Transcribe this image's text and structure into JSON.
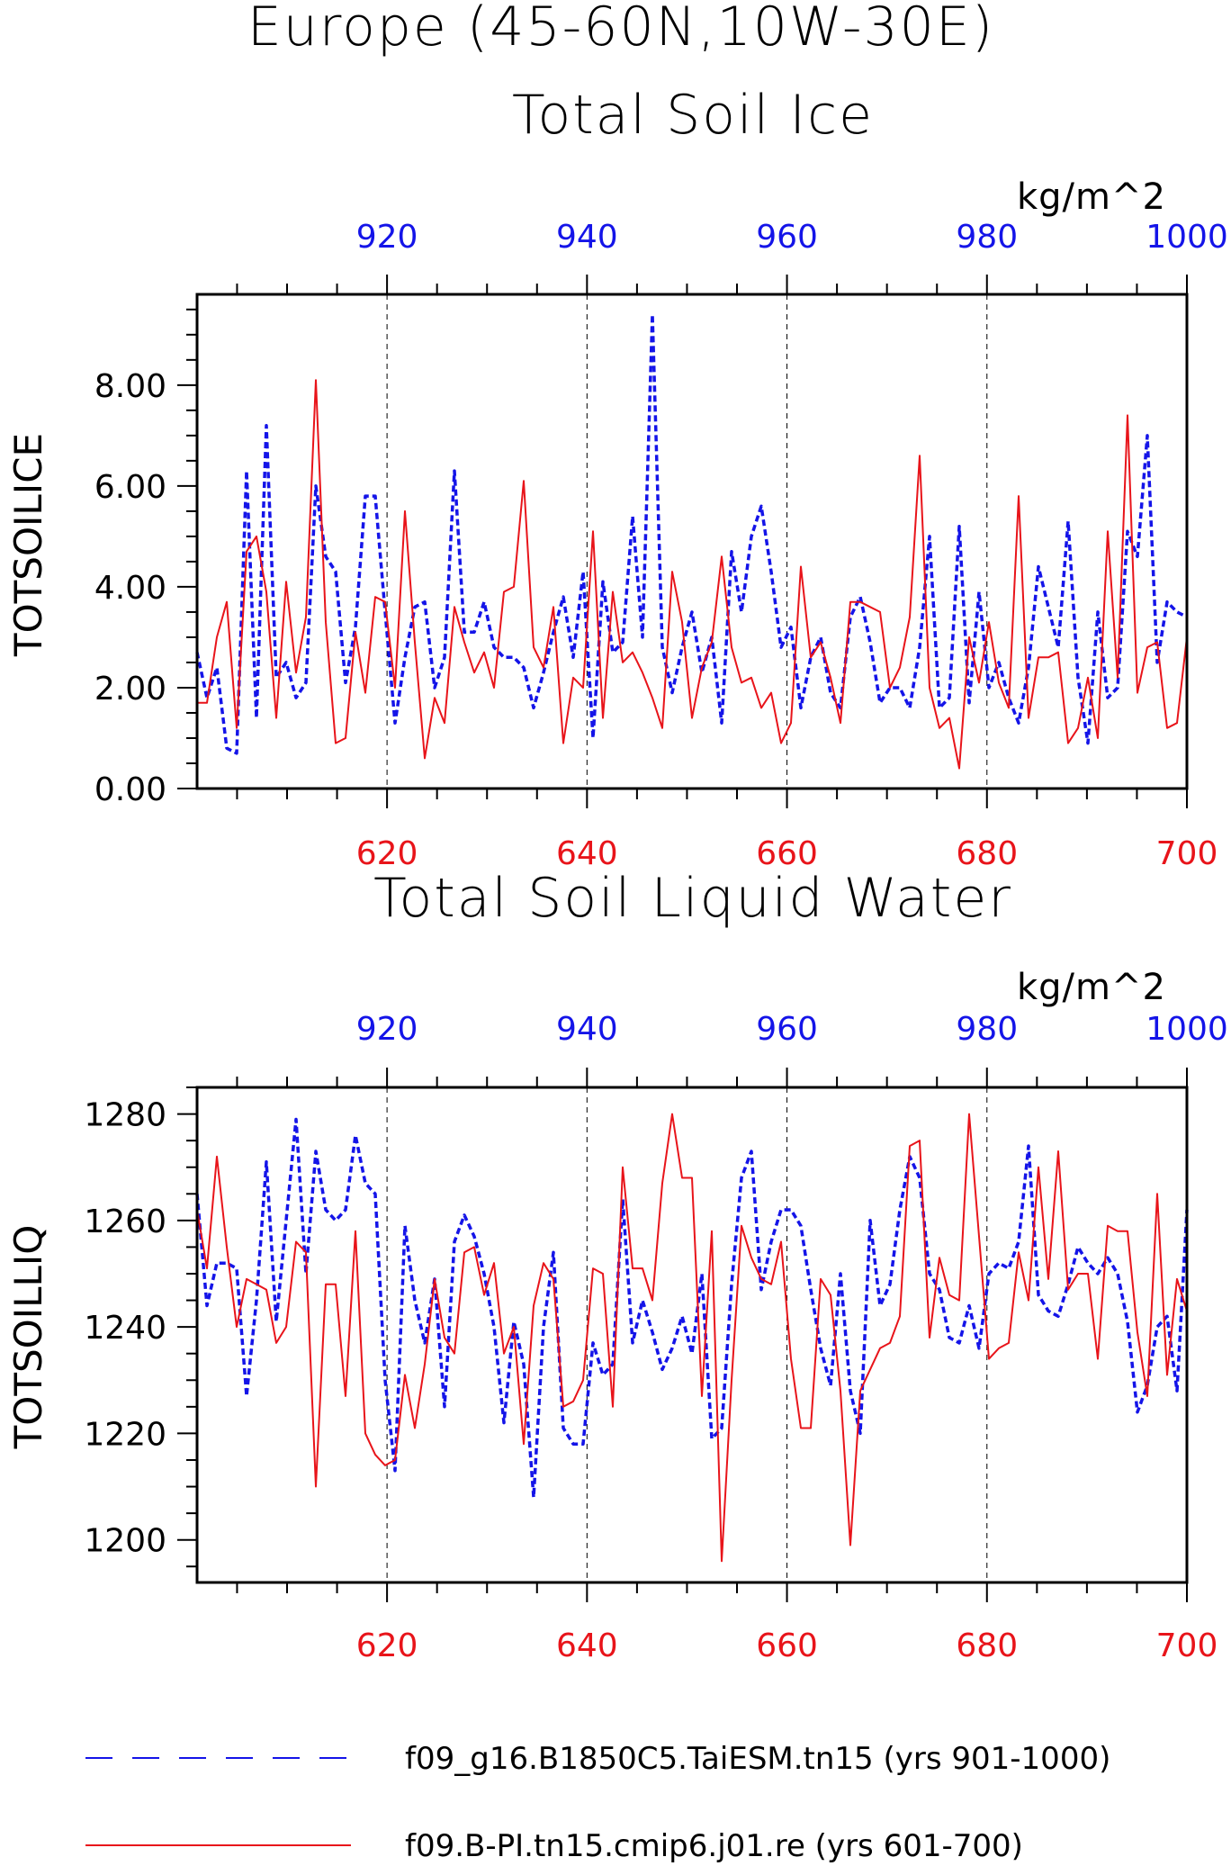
{
  "page_title": "Europe (45-60N,10W-30E)",
  "legend": [
    {
      "label": "f09_g16.B1850C5.TaiESM.tn15 (yrs 901-1000)",
      "color": "#1414e8",
      "dash": "dashed"
    },
    {
      "label": "f09.B-PI.tn15.cmip6.j01.re (yrs 601-700)",
      "color": "#e8141a",
      "dash": "solid"
    }
  ],
  "chart_data": [
    {
      "type": "line",
      "title": "Total Soil Ice",
      "units": "kg/m^2",
      "ylabel": "TOTSOILICE",
      "ylim": [
        0,
        9.8
      ],
      "yticks": [
        0,
        2,
        4,
        6,
        8
      ],
      "ytick_labels": [
        "0.00",
        "2.00",
        "4.00",
        "6.00",
        "8.00"
      ],
      "bottom_xlim": [
        601,
        700
      ],
      "bottom_xticks": [
        620,
        640,
        660,
        680,
        700
      ],
      "top_xlim": [
        901,
        1000
      ],
      "top_xticks": [
        920,
        940,
        960,
        980,
        1000
      ],
      "grid_x": true,
      "series": [
        {
          "axis": "top",
          "color": "#1414e8",
          "dash": "dashed",
          "values": [
            2.7,
            1.8,
            2.4,
            0.8,
            0.7,
            6.3,
            1.4,
            7.2,
            2.2,
            2.5,
            1.8,
            2.1,
            6.0,
            4.6,
            4.3,
            2.1,
            3.2,
            5.8,
            5.8,
            3.5,
            1.3,
            2.6,
            3.6,
            3.7,
            2.0,
            2.6,
            6.3,
            3.1,
            3.1,
            3.7,
            2.8,
            2.6,
            2.6,
            2.4,
            1.6,
            2.3,
            3.1,
            3.8,
            2.6,
            4.3,
            1.0,
            4.1,
            2.7,
            2.9,
            5.4,
            3.0,
            9.4,
            2.8,
            1.9,
            2.8,
            3.5,
            2.3,
            3.0,
            1.3,
            4.7,
            3.5,
            5.0,
            5.6,
            4.3,
            2.8,
            3.2,
            1.6,
            2.6,
            3.0,
            1.9,
            1.6,
            3.4,
            3.8,
            2.9,
            1.7,
            2.0,
            2.0,
            1.6,
            2.8,
            5.0,
            1.6,
            1.8,
            5.2,
            1.7,
            3.9,
            2.0,
            2.5,
            1.8,
            1.3,
            2.4,
            4.4,
            3.6,
            2.8,
            5.3,
            2.2,
            0.9,
            3.5,
            1.8,
            2.0,
            5.1,
            4.6,
            7.0,
            2.5,
            3.7,
            3.5,
            3.4
          ]
        },
        {
          "axis": "bottom",
          "color": "#e8141a",
          "dash": "solid",
          "values": [
            1.7,
            1.7,
            3.0,
            3.7,
            1.2,
            4.7,
            5.0,
            3.9,
            1.4,
            4.1,
            2.3,
            3.4,
            8.1,
            3.3,
            0.9,
            1.0,
            3.1,
            1.9,
            3.8,
            3.7,
            2.0,
            5.5,
            2.9,
            0.6,
            1.8,
            1.3,
            3.6,
            2.9,
            2.3,
            2.7,
            2.0,
            3.9,
            4.0,
            6.1,
            2.8,
            2.4,
            3.6,
            0.9,
            2.2,
            2.0,
            5.1,
            1.4,
            3.9,
            2.5,
            2.7,
            2.3,
            1.8,
            1.2,
            4.3,
            3.3,
            1.4,
            2.4,
            2.9,
            4.6,
            2.8,
            2.1,
            2.2,
            1.6,
            1.9,
            0.9,
            1.3,
            4.4,
            2.6,
            2.9,
            2.2,
            1.3,
            3.7,
            3.7,
            3.6,
            3.5,
            2.0,
            2.4,
            3.4,
            6.6,
            2.0,
            1.2,
            1.4,
            0.4,
            3.0,
            2.1,
            3.3,
            2.1,
            1.6,
            5.8,
            1.4,
            2.6,
            2.6,
            2.7,
            0.9,
            1.2,
            2.2,
            1.0,
            5.1,
            2.2,
            7.4,
            1.9,
            2.8,
            2.9,
            1.2,
            1.3,
            3.0
          ]
        }
      ]
    },
    {
      "type": "line",
      "title": "Total Soil Liquid Water",
      "units": "kg/m^2",
      "ylabel": "TOTSOILLIQ",
      "ylim": [
        1192,
        1285
      ],
      "yticks": [
        1200,
        1220,
        1240,
        1260,
        1280
      ],
      "ytick_labels": [
        "1200",
        "1220",
        "1240",
        "1260",
        "1280"
      ],
      "bottom_xlim": [
        601,
        700
      ],
      "bottom_xticks": [
        620,
        640,
        660,
        680,
        700
      ],
      "top_xlim": [
        901,
        1000
      ],
      "top_xticks": [
        920,
        940,
        960,
        980,
        1000
      ],
      "grid_x": true,
      "series": [
        {
          "axis": "top",
          "color": "#1414e8",
          "dash": "dashed",
          "values": [
            1265,
            1244,
            1252,
            1252,
            1251,
            1227,
            1245,
            1271,
            1241,
            1260,
            1279,
            1250,
            1273,
            1262,
            1260,
            1262,
            1276,
            1267,
            1265,
            1230,
            1213,
            1259,
            1245,
            1237,
            1249,
            1225,
            1256,
            1261,
            1257,
            1250,
            1240,
            1222,
            1241,
            1233,
            1208,
            1240,
            1254,
            1221,
            1218,
            1218,
            1237,
            1231,
            1233,
            1264,
            1237,
            1245,
            1239,
            1232,
            1236,
            1242,
            1235,
            1250,
            1219,
            1221,
            1248,
            1268,
            1273,
            1247,
            1256,
            1262,
            1262,
            1259,
            1247,
            1236,
            1229,
            1250,
            1228,
            1220,
            1260,
            1244,
            1248,
            1262,
            1272,
            1268,
            1250,
            1247,
            1238,
            1237,
            1244,
            1236,
            1250,
            1252,
            1251,
            1256,
            1274,
            1246,
            1243,
            1242,
            1248,
            1255,
            1252,
            1250,
            1253,
            1250,
            1241,
            1224,
            1229,
            1240,
            1242,
            1228,
            1262
          ]
        },
        {
          "axis": "bottom",
          "color": "#e8141a",
          "dash": "solid",
          "values": [
            1262,
            1251,
            1272,
            1255,
            1240,
            1249,
            1248,
            1247,
            1237,
            1240,
            1256,
            1254,
            1210,
            1248,
            1248,
            1227,
            1258,
            1220,
            1216,
            1214,
            1215,
            1231,
            1221,
            1233,
            1249,
            1238,
            1235,
            1254,
            1255,
            1246,
            1252,
            1235,
            1240,
            1218,
            1244,
            1252,
            1249,
            1225,
            1226,
            1230,
            1251,
            1250,
            1225,
            1270,
            1251,
            1251,
            1245,
            1267,
            1280,
            1268,
            1268,
            1227,
            1258,
            1196,
            1230,
            1259,
            1253,
            1249,
            1248,
            1256,
            1234,
            1221,
            1221,
            1249,
            1246,
            1228,
            1199,
            1228,
            1232,
            1236,
            1237,
            1242,
            1274,
            1275,
            1238,
            1253,
            1246,
            1245,
            1280,
            1257,
            1234,
            1236,
            1237,
            1254,
            1245,
            1270,
            1249,
            1273,
            1247,
            1250,
            1250,
            1234,
            1259,
            1258,
            1258,
            1239,
            1227,
            1265,
            1231,
            1249,
            1243
          ]
        }
      ]
    }
  ]
}
